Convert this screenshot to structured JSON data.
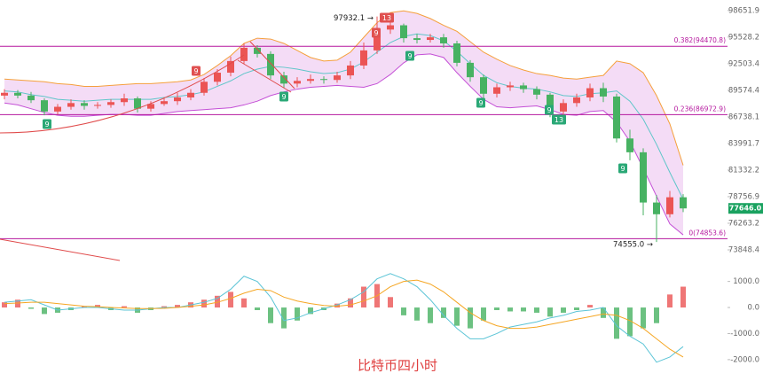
{
  "chart_data": [
    {
      "type": "candlestick",
      "log_scale": true,
      "grid": false,
      "ylim": [
        73217,
        99910
      ],
      "yticks": [
        98651.9,
        95528.2,
        92503.4,
        89574.4,
        86738.1,
        83991.7,
        81332.2,
        78756.9,
        76263.2,
        73848.4
      ],
      "up_color": "#eb5454",
      "down_color": "#47b262",
      "open": [
        89000,
        89300,
        89000,
        88500,
        87300,
        87800,
        88200,
        87900,
        88000,
        88300,
        88700,
        87600,
        88100,
        88400,
        88800,
        89300,
        90500,
        91500,
        92800,
        94300,
        93600,
        91200,
        90300,
        90600,
        90800,
        90700,
        91200,
        92300,
        94000,
        96400,
        96900,
        95400,
        95200,
        95500,
        94800,
        92600,
        91000,
        89200,
        89900,
        90100,
        89700,
        89100,
        87300,
        88200,
        88800,
        89800,
        88900,
        84500,
        83100,
        78200,
        77100,
        78700
      ],
      "high": [
        89700,
        89600,
        89400,
        88700,
        88100,
        88600,
        88500,
        88300,
        88600,
        89200,
        88900,
        88400,
        88800,
        89300,
        89700,
        90900,
        91900,
        93300,
        94800,
        94600,
        93900,
        91600,
        91000,
        91300,
        91100,
        91600,
        92800,
        94900,
        97932.1,
        97500,
        97100,
        95900,
        95900,
        95900,
        95100,
        92900,
        91300,
        90300,
        90500,
        90400,
        90000,
        89300,
        88600,
        89200,
        90300,
        90400,
        89200,
        85400,
        83500,
        78900,
        79300,
        79000
      ],
      "low": [
        88600,
        88700,
        88200,
        86900,
        87000,
        87500,
        87500,
        87600,
        87700,
        87900,
        87200,
        87300,
        87900,
        88000,
        88500,
        89000,
        90100,
        91100,
        92500,
        93200,
        90800,
        89800,
        89900,
        90300,
        90300,
        90400,
        90800,
        91900,
        93600,
        95900,
        94900,
        94800,
        94900,
        94300,
        92200,
        90500,
        88700,
        88800,
        89500,
        89300,
        88600,
        86700,
        86900,
        87800,
        88400,
        88300,
        84100,
        82300,
        77000,
        74555.0,
        76800,
        77300
      ],
      "close": [
        89300,
        89000,
        88500,
        87300,
        87800,
        88200,
        87900,
        88000,
        88300,
        88700,
        87600,
        88100,
        88400,
        88800,
        89300,
        90500,
        91500,
        92800,
        94300,
        93600,
        91200,
        90300,
        90600,
        90800,
        90700,
        91200,
        92300,
        94000,
        96400,
        96900,
        95400,
        95200,
        95500,
        94800,
        92600,
        91000,
        89200,
        89900,
        90100,
        89700,
        89100,
        87300,
        88200,
        88800,
        89800,
        88900,
        84500,
        83100,
        78200,
        77100,
        78700,
        77646
      ],
      "bands": {
        "upper": [
          90800,
          90700,
          90600,
          90500,
          90300,
          90200,
          90000,
          90000,
          90100,
          90200,
          90300,
          90300,
          90400,
          90500,
          90700,
          91300,
          92300,
          93400,
          94800,
          95400,
          95300,
          94800,
          94000,
          93200,
          92800,
          92900,
          93800,
          95500,
          97200,
          98400,
          98600,
          98300,
          97700,
          96900,
          96200,
          95000,
          93800,
          93000,
          92300,
          91800,
          91400,
          91200,
          90900,
          90800,
          91000,
          91200,
          92800,
          92500,
          91500,
          89000,
          86000,
          81800
        ],
        "middle": [
          89500,
          89400,
          89100,
          88900,
          88600,
          88500,
          88400,
          88500,
          88600,
          88600,
          88600,
          88600,
          88800,
          88900,
          89100,
          89400,
          90000,
          90600,
          91400,
          91900,
          92200,
          92100,
          91900,
          91600,
          91400,
          91500,
          91900,
          92700,
          93800,
          94900,
          95600,
          95900,
          95700,
          95100,
          93900,
          92500,
          91200,
          90400,
          90000,
          89800,
          89700,
          89400,
          89000,
          88900,
          89200,
          89300,
          89500,
          88400,
          86500,
          83900,
          81100,
          78500
        ],
        "lower": [
          88200,
          88000,
          87600,
          87200,
          86900,
          86800,
          86800,
          86900,
          87000,
          87000,
          86900,
          86900,
          87100,
          87300,
          87400,
          87500,
          87600,
          87700,
          88000,
          88400,
          89000,
          89400,
          89700,
          89900,
          90000,
          90100,
          90000,
          89900,
          90300,
          91300,
          92600,
          93500,
          93600,
          93200,
          91500,
          90000,
          88600,
          87800,
          87700,
          87800,
          87900,
          87500,
          87000,
          86900,
          87300,
          87400,
          86200,
          84200,
          81500,
          78800,
          76200,
          75200
        ]
      },
      "band_fill": "#f4dcf6",
      "upper_color": "#f5a03c",
      "middle_color": "#5fc6c9",
      "lower_color": "#c44fd6",
      "fib_color": "#b5179e",
      "fib_levels": [
        {
          "value": 94470.8,
          "label": "0.382(94470.8)"
        },
        {
          "value": 86972.9,
          "label": "0.236(86972.9)"
        },
        {
          "value": 74853.6,
          "label": "0(74853.6)"
        }
      ],
      "last_price": {
        "value": 77646.0,
        "label": "77646.0"
      },
      "last_color": "#1aa260",
      "annotations": [
        {
          "value": 97932.1,
          "label": "97932.1 →"
        },
        {
          "value": 74555.0,
          "label": "74555.0 →"
        }
      ],
      "td_marks": [
        {
          "label": "9",
          "color": "#e05050"
        },
        {
          "label": "9",
          "color": "#2aa876"
        },
        {
          "label": "9",
          "color": "#2aa876"
        },
        {
          "label": "9",
          "color": "#e05050"
        },
        {
          "label": "13",
          "color": "#e05050"
        },
        {
          "label": "9",
          "color": "#2aa876"
        },
        {
          "label": "9",
          "color": "#2aa876"
        },
        {
          "label": "9",
          "color": "#2aa876"
        },
        {
          "label": "13",
          "color": "#2aa876"
        },
        {
          "label": "9",
          "color": "#2aa876"
        }
      ]
    },
    {
      "type": "macd",
      "ylim": [
        -2650,
        1600
      ],
      "yticks": [
        {
          "value": 1000,
          "label": "1000.0"
        },
        {
          "value": 0,
          "label": "0.0"
        },
        {
          "value": -1000,
          "label": "-1000.0"
        },
        {
          "value": -2000,
          "label": "-2000.0"
        }
      ],
      "up_color": "#eb5454",
      "down_color": "#47b262",
      "values": [
        200,
        300,
        -50,
        -250,
        -200,
        -100,
        50,
        100,
        -100,
        50,
        -200,
        -100,
        50,
        100,
        200,
        300,
        450,
        600,
        350,
        -100,
        -600,
        -800,
        -500,
        -250,
        -100,
        150,
        350,
        800,
        900,
        400,
        -300,
        -500,
        -600,
        -400,
        -700,
        -800,
        -500,
        -100,
        -150,
        -150,
        -200,
        -350,
        -200,
        -100,
        100,
        -400,
        -1200,
        -1100,
        -800,
        -600,
        500,
        800
      ],
      "dif": {
        "color": "#5bc4d6",
        "values": [
          200,
          250,
          300,
          100,
          -100,
          -50,
          0,
          0,
          -50,
          -100,
          -100,
          -50,
          0,
          0,
          100,
          200,
          350,
          700,
          1200,
          1000,
          400,
          -500,
          -400,
          -200,
          -50,
          100,
          300,
          600,
          1100,
          1300,
          1100,
          800,
          300,
          -300,
          -800,
          -1200,
          -1200,
          -1000,
          -750,
          -650,
          -550,
          -400,
          -300,
          -150,
          -100,
          0,
          -700,
          -1100,
          -1400,
          -2100,
          -1900,
          -1500
        ]
      },
      "dea": {
        "color": "#f5a623",
        "values": [
          150,
          170,
          200,
          200,
          150,
          100,
          50,
          30,
          0,
          -20,
          -40,
          -40,
          -30,
          0,
          50,
          100,
          200,
          350,
          550,
          700,
          650,
          400,
          250,
          150,
          80,
          50,
          100,
          250,
          450,
          800,
          1000,
          1050,
          900,
          600,
          200,
          -200,
          -500,
          -700,
          -800,
          -800,
          -750,
          -650,
          -550,
          -450,
          -350,
          -250,
          -300,
          -500,
          -800,
          -1200,
          -1600,
          -1900
        ]
      }
    }
  ],
  "watermark": "比特币四小时"
}
